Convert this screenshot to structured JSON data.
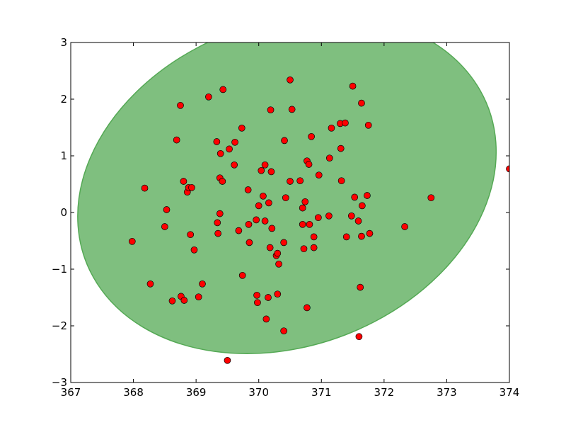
{
  "chart_data": {
    "type": "scatter",
    "title": "",
    "xlabel": "",
    "ylabel": "",
    "xlim": [
      367,
      374
    ],
    "ylim": [
      -3,
      3
    ],
    "grid": false,
    "xticks": [
      367,
      368,
      369,
      370,
      371,
      372,
      373,
      374
    ],
    "yticks": [
      3,
      2,
      1,
      0,
      -1,
      -2,
      -3
    ],
    "xtick_labels": [
      "367",
      "368",
      "369",
      "370",
      "371",
      "372",
      "373",
      "374"
    ],
    "ytick_labels": [
      "3",
      "2",
      "1",
      "0",
      "−1",
      "−2",
      "−3"
    ],
    "ellipse": {
      "center": [
        370.45,
        0.5
      ],
      "semi_axis_a": 3.5,
      "semi_axis_b": 2.8,
      "angle_deg": 30,
      "color": "#7fbf7f",
      "edge_color": "#55a955"
    },
    "point_color": "#ff0000",
    "point_edge_color": "#000000",
    "points": [
      [
        367.98,
        -0.51
      ],
      [
        368.18,
        0.43
      ],
      [
        368.27,
        -1.26
      ],
      [
        368.5,
        -0.25
      ],
      [
        368.53,
        0.05
      ],
      [
        368.62,
        -1.56
      ],
      [
        368.69,
        1.28
      ],
      [
        368.75,
        1.89
      ],
      [
        368.76,
        -1.48
      ],
      [
        368.8,
        0.55
      ],
      [
        368.81,
        -1.55
      ],
      [
        368.86,
        0.36
      ],
      [
        368.88,
        0.44
      ],
      [
        368.93,
        0.44
      ],
      [
        368.91,
        -0.39
      ],
      [
        368.97,
        -0.66
      ],
      [
        369.04,
        -1.49
      ],
      [
        369.1,
        -1.26
      ],
      [
        369.2,
        2.04
      ],
      [
        369.33,
        1.25
      ],
      [
        369.34,
        -0.18
      ],
      [
        369.35,
        -0.37
      ],
      [
        369.38,
        0.61
      ],
      [
        369.38,
        -0.02
      ],
      [
        369.39,
        1.04
      ],
      [
        369.42,
        0.55
      ],
      [
        369.43,
        2.17
      ],
      [
        369.5,
        -2.61
      ],
      [
        369.53,
        1.12
      ],
      [
        369.61,
        0.84
      ],
      [
        369.62,
        1.24
      ],
      [
        369.68,
        -0.32
      ],
      [
        369.73,
        1.49
      ],
      [
        369.74,
        -1.11
      ],
      [
        369.83,
        0.4
      ],
      [
        369.84,
        -0.21
      ],
      [
        369.85,
        -0.53
      ],
      [
        369.96,
        -0.13
      ],
      [
        369.97,
        -1.46
      ],
      [
        369.98,
        -1.59
      ],
      [
        370.0,
        0.12
      ],
      [
        370.04,
        0.74
      ],
      [
        370.07,
        0.29
      ],
      [
        370.1,
        0.84
      ],
      [
        370.1,
        -0.15
      ],
      [
        370.12,
        -1.88
      ],
      [
        370.15,
        -1.5
      ],
      [
        370.16,
        0.17
      ],
      [
        370.18,
        -0.62
      ],
      [
        370.19,
        1.81
      ],
      [
        370.2,
        0.72
      ],
      [
        370.21,
        -0.28
      ],
      [
        370.28,
        -0.76
      ],
      [
        370.3,
        -0.72
      ],
      [
        370.3,
        -1.44
      ],
      [
        370.32,
        -0.91
      ],
      [
        370.4,
        -0.53
      ],
      [
        370.4,
        -2.09
      ],
      [
        370.41,
        1.27
      ],
      [
        370.43,
        0.26
      ],
      [
        370.5,
        2.34
      ],
      [
        370.5,
        0.55
      ],
      [
        370.53,
        1.82
      ],
      [
        370.66,
        0.56
      ],
      [
        370.7,
        0.08
      ],
      [
        370.7,
        -0.21
      ],
      [
        370.72,
        -0.64
      ],
      [
        370.74,
        0.19
      ],
      [
        370.77,
        -1.68
      ],
      [
        370.77,
        0.91
      ],
      [
        370.8,
        0.85
      ],
      [
        370.81,
        -0.21
      ],
      [
        370.84,
        1.34
      ],
      [
        370.88,
        -0.62
      ],
      [
        370.88,
        -0.43
      ],
      [
        370.95,
        -0.09
      ],
      [
        370.96,
        0.66
      ],
      [
        371.12,
        -0.06
      ],
      [
        371.13,
        0.96
      ],
      [
        371.16,
        1.49
      ],
      [
        371.3,
        1.57
      ],
      [
        371.31,
        1.13
      ],
      [
        371.32,
        0.56
      ],
      [
        371.38,
        1.58
      ],
      [
        371.4,
        -0.43
      ],
      [
        371.48,
        -0.06
      ],
      [
        371.5,
        2.23
      ],
      [
        371.53,
        0.27
      ],
      [
        371.59,
        -0.15
      ],
      [
        371.6,
        -2.19
      ],
      [
        371.62,
        -1.32
      ],
      [
        371.64,
        -0.42
      ],
      [
        371.64,
        1.93
      ],
      [
        371.65,
        0.12
      ],
      [
        371.73,
        0.3
      ],
      [
        371.75,
        1.54
      ],
      [
        371.77,
        -0.37
      ],
      [
        372.33,
        -0.25
      ],
      [
        372.75,
        0.26
      ],
      [
        374.0,
        0.77
      ]
    ]
  }
}
